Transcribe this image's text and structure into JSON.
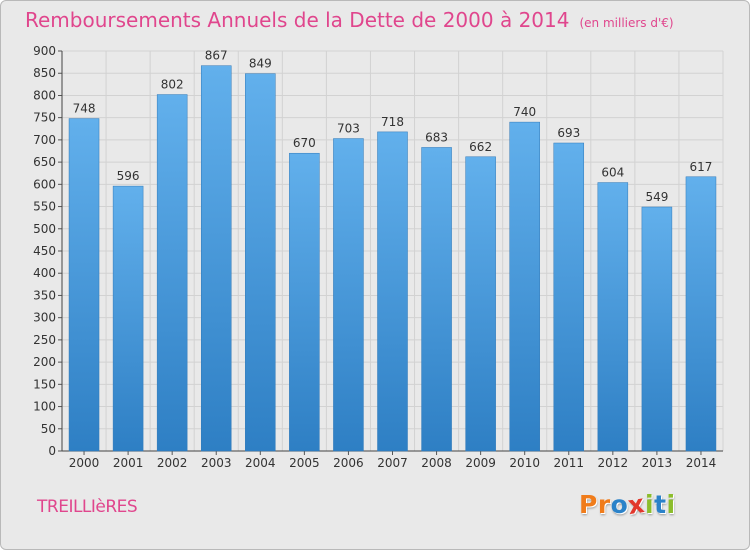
{
  "chart_data": {
    "type": "bar",
    "title": "Remboursements Annuels de la Dette de 2000 à 2014",
    "subtitle": "(en milliers d'€)",
    "categories": [
      "2000",
      "2001",
      "2002",
      "2003",
      "2004",
      "2005",
      "2006",
      "2007",
      "2008",
      "2009",
      "2010",
      "2011",
      "2012",
      "2013",
      "2014"
    ],
    "values": [
      748,
      596,
      802,
      867,
      849,
      670,
      703,
      718,
      683,
      662,
      740,
      693,
      604,
      549,
      617
    ],
    "ylim": [
      0,
      900
    ],
    "yticks": [
      0,
      50,
      100,
      150,
      200,
      250,
      300,
      350,
      400,
      450,
      500,
      550,
      600,
      650,
      700,
      750,
      800,
      850,
      900
    ],
    "grid": true,
    "bar_color": "#4f9fdc",
    "value_labels": true
  },
  "footer": {
    "commune": "TREILLIèRES",
    "logo_letters": [
      {
        "char": "P",
        "color": "#f07c1b"
      },
      {
        "char": "r",
        "color": "#f07c1b"
      },
      {
        "char": "o",
        "color": "#2b82c9"
      },
      {
        "char": "x",
        "color": "#e2372c"
      },
      {
        "char": "i",
        "color": "#8cbd2c"
      },
      {
        "char": "t",
        "color": "#2b82c9"
      },
      {
        "char": "i",
        "color": "#8cbd2c"
      }
    ]
  },
  "colors": {
    "accent": "#e0468d",
    "background": "#e9e9e9"
  }
}
